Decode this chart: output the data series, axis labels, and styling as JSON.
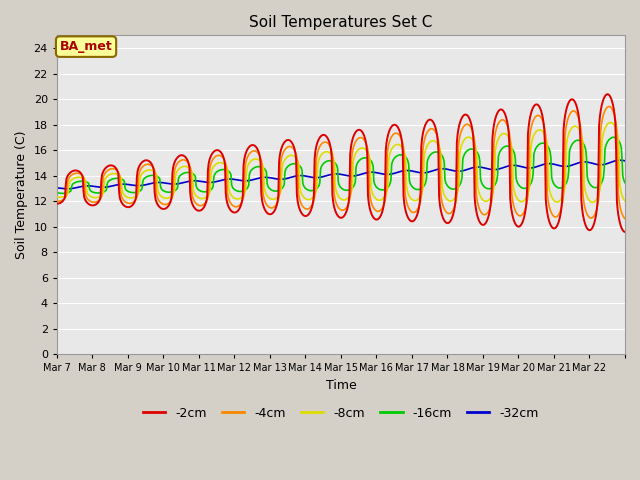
{
  "title": "Soil Temperatures Set C",
  "xlabel": "Time",
  "ylabel": "Soil Temperature (C)",
  "ylim": [
    0,
    25
  ],
  "yticks": [
    0,
    2,
    4,
    6,
    8,
    10,
    12,
    14,
    16,
    18,
    20,
    22,
    24
  ],
  "x_labels": [
    "Mar 7",
    "Mar 8",
    "Mar 9",
    "Mar 10",
    "Mar 11",
    "Mar 12",
    "Mar 13",
    "Mar 14",
    "Mar 15",
    "Mar 16",
    "Mar 17",
    "Mar 18",
    "Mar 19",
    "Mar 20",
    "Mar 21",
    "Mar 22"
  ],
  "series_colors": [
    "#dd0000",
    "#ff8800",
    "#dddd00",
    "#00cc00",
    "#0000cc"
  ],
  "series_labels": [
    "-2cm",
    "-4cm",
    "-8cm",
    "-16cm",
    "-32cm"
  ],
  "annotation_text": "BA_met",
  "annotation_bg": "#ffff99",
  "annotation_border": "#886600",
  "annotation_text_color": "#aa0000",
  "fig_bg": "#d4d0c8",
  "plot_bg": "#e8e8e8",
  "grid_color": "#ffffff",
  "n_days": 16,
  "ppd": 48,
  "base_temp": 13.0,
  "trend_per_day": 0.13,
  "amp_start": [
    1.2,
    1.0,
    0.7,
    0.4,
    0.08
  ],
  "amp_end": [
    5.5,
    4.5,
    3.2,
    2.0,
    0.15
  ],
  "lags_hours": [
    0,
    1,
    2,
    4,
    8
  ],
  "sharpness": 3.5
}
